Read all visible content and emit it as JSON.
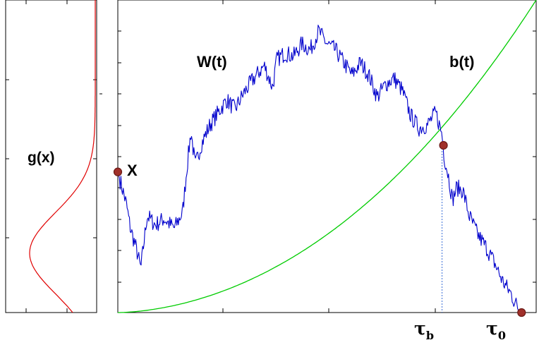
{
  "colors": {
    "density": "#e00000",
    "path": "#0000cc",
    "boundary": "#00cc00",
    "marker_fill": "#a0302a",
    "marker_stroke": "#6b1a16",
    "drop_line": "#3a6fd8",
    "axes": "#000000"
  },
  "labels": {
    "density": "g(x)",
    "path": "W(t)",
    "boundary": "b(t)",
    "start": "X",
    "tau_b_base": "τ",
    "tau_b_sub": "b",
    "tau_0_base": "τ",
    "tau_0_sub": "0"
  },
  "chart_data": {
    "type": "line",
    "axis_ticks_labeled": false,
    "grid": false,
    "density_curve": {
      "label": "g(x)",
      "shape": "bell",
      "peak_fraction_of_height": 0.19,
      "peak_width_fraction": 0.13
    },
    "main_plot": {
      "t_range": [
        0,
        1
      ],
      "y_range": [
        0,
        1
      ],
      "boundary_b": {
        "label": "b(t)",
        "points": [
          [
            0.0,
            0.0
          ],
          [
            0.2,
            0.04
          ],
          [
            0.4,
            0.13
          ],
          [
            0.6,
            0.3
          ],
          [
            0.74,
            0.5
          ],
          [
            0.85,
            0.68
          ],
          [
            1.0,
            1.0
          ]
        ]
      },
      "path_W": {
        "label": "W(t)",
        "anchors": [
          [
            0.0,
            0.45
          ],
          [
            0.01,
            0.4
          ],
          [
            0.02,
            0.35
          ],
          [
            0.03,
            0.27
          ],
          [
            0.045,
            0.2
          ],
          [
            0.055,
            0.14
          ],
          [
            0.07,
            0.31
          ],
          [
            0.09,
            0.28
          ],
          [
            0.11,
            0.3
          ],
          [
            0.135,
            0.27
          ],
          [
            0.155,
            0.32
          ],
          [
            0.165,
            0.46
          ],
          [
            0.175,
            0.58
          ],
          [
            0.185,
            0.47
          ],
          [
            0.2,
            0.54
          ],
          [
            0.22,
            0.6
          ],
          [
            0.24,
            0.64
          ],
          [
            0.26,
            0.68
          ],
          [
            0.28,
            0.65
          ],
          [
            0.3,
            0.7
          ],
          [
            0.32,
            0.74
          ],
          [
            0.35,
            0.79
          ],
          [
            0.37,
            0.72
          ],
          [
            0.38,
            0.81
          ],
          [
            0.4,
            0.83
          ],
          [
            0.42,
            0.82
          ],
          [
            0.44,
            0.86
          ],
          [
            0.46,
            0.84
          ],
          [
            0.48,
            0.9
          ],
          [
            0.5,
            0.86
          ],
          [
            0.52,
            0.84
          ],
          [
            0.54,
            0.8
          ],
          [
            0.56,
            0.76
          ],
          [
            0.58,
            0.8
          ],
          [
            0.6,
            0.76
          ],
          [
            0.62,
            0.69
          ],
          [
            0.64,
            0.73
          ],
          [
            0.66,
            0.75
          ],
          [
            0.68,
            0.71
          ],
          [
            0.7,
            0.63
          ],
          [
            0.72,
            0.59
          ],
          [
            0.74,
            0.6
          ],
          [
            0.76,
            0.64
          ],
          [
            0.775,
            0.57
          ],
          [
            0.78,
            0.5
          ],
          [
            0.79,
            0.44
          ],
          [
            0.8,
            0.36
          ],
          [
            0.81,
            0.4
          ],
          [
            0.825,
            0.39
          ],
          [
            0.84,
            0.31
          ],
          [
            0.86,
            0.25
          ],
          [
            0.88,
            0.21
          ],
          [
            0.9,
            0.16
          ],
          [
            0.92,
            0.1
          ],
          [
            0.94,
            0.06
          ],
          [
            0.95,
            0.03
          ],
          [
            0.965,
            0.0
          ]
        ]
      },
      "events": {
        "start_value": 0.45,
        "tau_b": 0.775,
        "crossing_value": 0.535,
        "tau_0": 0.965
      }
    }
  }
}
